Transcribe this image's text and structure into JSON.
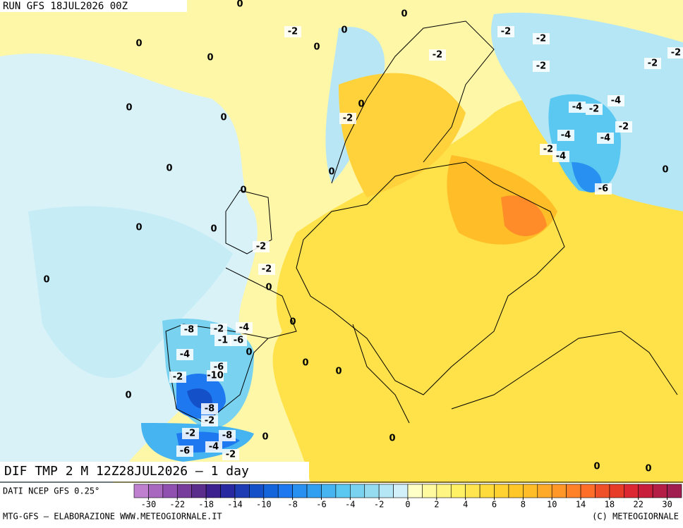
{
  "header": {
    "run": "RUN GFS 18JUL2026 00Z"
  },
  "map": {
    "title": "DIF TMP 2 M 12Z28JUL2026 – 1 day",
    "contour_labels": [
      0,
      0,
      -2,
      0,
      0,
      0,
      0,
      -2,
      -2,
      -2,
      -2,
      -2,
      -2,
      0,
      0,
      0,
      -2,
      -4,
      -2,
      -4,
      -2,
      -4,
      -4,
      -2,
      -4,
      0,
      0,
      0,
      -6,
      0,
      0,
      0,
      -2,
      -2,
      0,
      0,
      0,
      -8,
      -2,
      -4,
      -1,
      -6,
      0,
      -4,
      0,
      -6,
      0,
      -2,
      -10,
      0,
      -8,
      -2,
      -2,
      -8,
      0,
      0,
      -6,
      -4,
      -2,
      0,
      0
    ]
  },
  "colorbar": {
    "source": "DATI NCEP GFS 0.25°",
    "colors": [
      "#c080d0",
      "#a868c0",
      "#9050b0",
      "#783c9c",
      "#5a2c8c",
      "#3c2090",
      "#2828a0",
      "#1e3cb4",
      "#1450c8",
      "#1464dc",
      "#1e78f0",
      "#2890f0",
      "#32a0f0",
      "#46b4f0",
      "#5ac8f0",
      "#78d2f0",
      "#96dcf0",
      "#b4e6f5",
      "#d2f0fa",
      "#ffffc8",
      "#fffaa0",
      "#fff582",
      "#fff064",
      "#ffe650",
      "#ffdc3c",
      "#ffd232",
      "#ffc828",
      "#ffbe28",
      "#ffaa28",
      "#ff9628",
      "#ff8228",
      "#ff6e28",
      "#f05028",
      "#e63c28",
      "#dc2832",
      "#c81e3c",
      "#b41e46",
      "#a01e50"
    ],
    "ticks": [
      -30,
      -22,
      -18,
      -14,
      -10,
      -8,
      -6,
      -4,
      -2,
      0,
      2,
      4,
      6,
      8,
      10,
      14,
      18,
      22,
      30
    ]
  },
  "footer": {
    "left": "MTG-GFS – ELABORAZIONE WWW.METEOGIORNALE.IT",
    "right": "(C) METEOGIORNALE"
  }
}
